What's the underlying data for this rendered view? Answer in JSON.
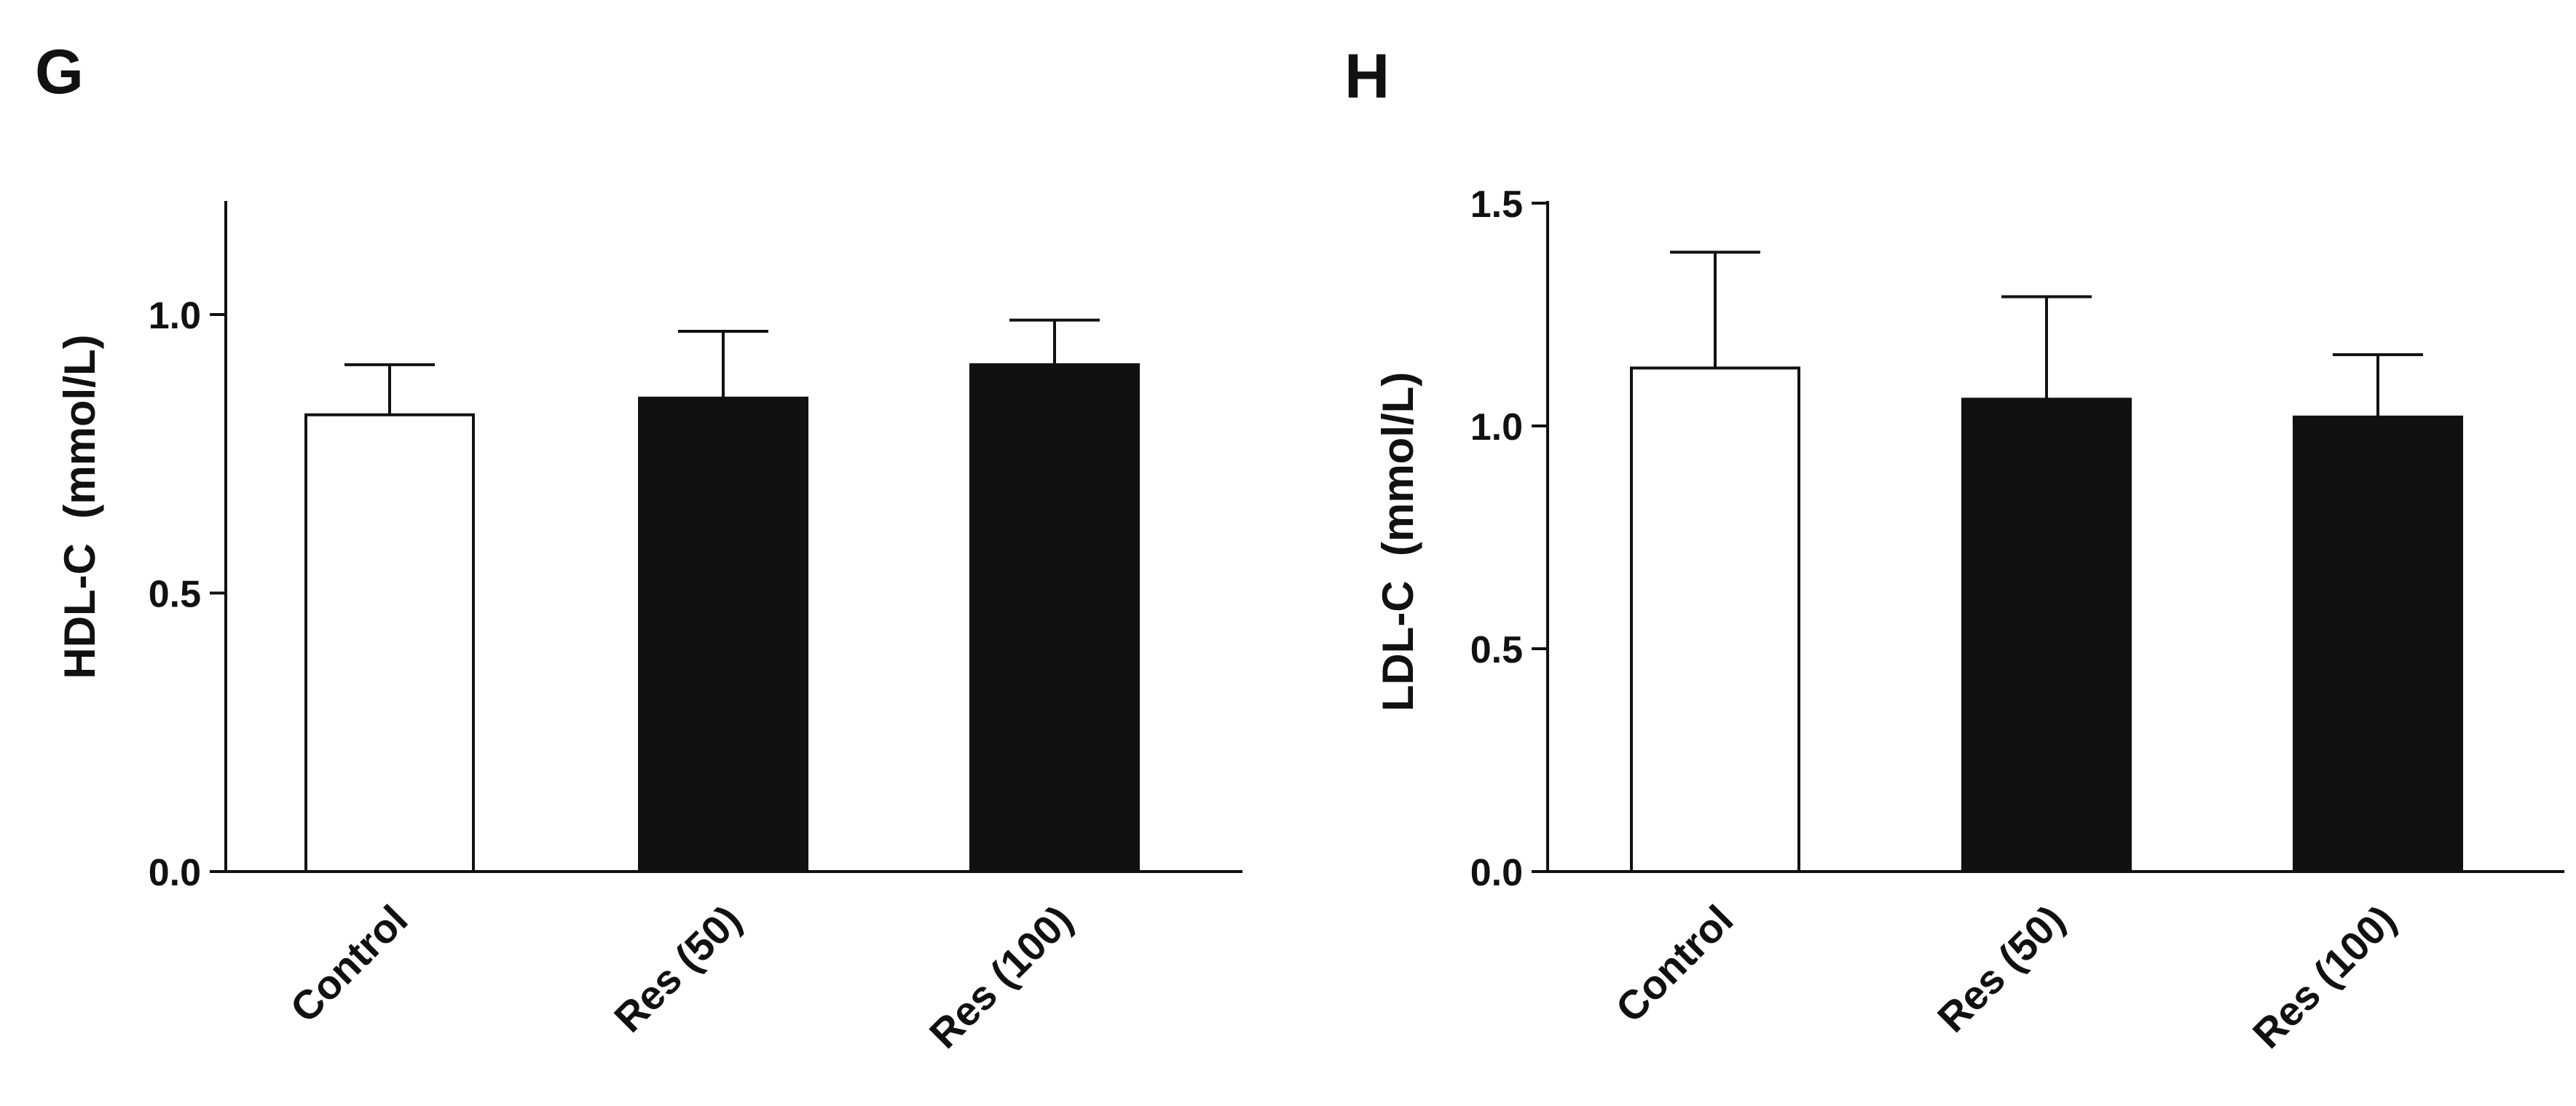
{
  "chart_data": [
    {
      "panel": "G",
      "type": "bar",
      "title": "",
      "xlabel": "",
      "ylabel": "HDL-C  (mmol/L)",
      "ylim": [
        0,
        1.2
      ],
      "yticks": [
        0.0,
        0.5,
        1.0
      ],
      "ytick_labels": [
        "0.0",
        "0.5",
        "1.0"
      ],
      "categories": [
        "Control",
        "Res (50)",
        "Res (100)"
      ],
      "values": [
        0.82,
        0.85,
        0.91
      ],
      "errors": [
        0.09,
        0.12,
        0.08
      ],
      "bar_colors": [
        "#ffffff",
        "#111111",
        "#111111"
      ],
      "grid": false,
      "legend": "none"
    },
    {
      "panel": "H",
      "type": "bar",
      "title": "",
      "xlabel": "",
      "ylabel": "LDL-C  (mmol/L)",
      "ylim": [
        0,
        1.5
      ],
      "yticks": [
        0.0,
        0.5,
        1.0,
        1.5
      ],
      "ytick_labels": [
        "0.0",
        "0.5",
        "1.0",
        "1.5"
      ],
      "categories": [
        "Control",
        "Res (50)",
        "Res (100)"
      ],
      "values": [
        1.13,
        1.06,
        1.02
      ],
      "errors": [
        0.26,
        0.23,
        0.14
      ],
      "bar_colors": [
        "#ffffff",
        "#111111",
        "#111111"
      ],
      "grid": false,
      "legend": "none"
    }
  ]
}
